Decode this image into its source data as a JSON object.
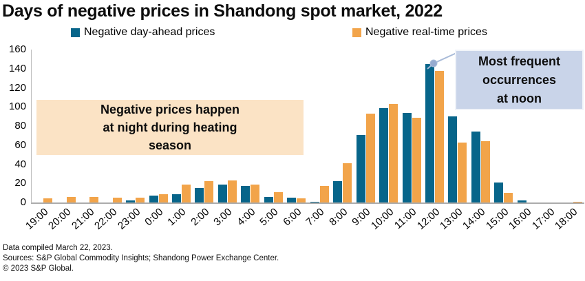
{
  "title": "Days of negative prices in Shandong spot market, 2022",
  "legend": {
    "items": [
      {
        "label": "Negative day-ahead prices",
        "color": "#07658a"
      },
      {
        "label": "Negative real-time prices",
        "color": "#f2a44a"
      }
    ]
  },
  "annotations": {
    "night": {
      "lines": [
        "Negative prices happen",
        "at night during heating",
        "season"
      ],
      "bg_color": "#fbe3c5"
    },
    "noon": {
      "lines": [
        "Most frequent",
        "occurrences",
        "at noon"
      ],
      "bg_color": "#c9d4e9",
      "leader_color": "#a9bbd8",
      "dot_color": "#96abd0"
    }
  },
  "footer": {
    "line1": "Data compiled March 22, 2023.",
    "line2": "Sources: S&P Global Commodity Insights; Shandong Power Exchange Center.",
    "line3": "© 2023 S&P Global."
  },
  "chart_data": {
    "type": "bar",
    "title": "Days of negative prices in Shandong spot market, 2022",
    "xlabel": "",
    "ylabel": "",
    "ylim": [
      0,
      160
    ],
    "yticks": [
      0,
      20,
      40,
      60,
      80,
      100,
      120,
      140,
      160
    ],
    "grid": false,
    "legend_position": "top",
    "categories": [
      "19:00",
      "20:00",
      "21:00",
      "22:00",
      "23:00",
      "0:00",
      "1:00",
      "2:00",
      "3:00",
      "4:00",
      "5:00",
      "6:00",
      "7:00",
      "8:00",
      "9:00",
      "10:00",
      "11:00",
      "12:00",
      "13:00",
      "14:00",
      "15:00",
      "16:00",
      "17:00",
      "18:00"
    ],
    "series": [
      {
        "name": "Negative day-ahead prices",
        "color": "#07658a",
        "values": [
          0,
          0,
          0,
          0,
          2,
          7,
          9,
          15,
          19,
          17,
          6,
          5,
          1,
          22,
          71,
          99,
          94,
          145,
          90,
          74,
          21,
          2,
          0,
          0
        ]
      },
      {
        "name": "Negative real-time prices",
        "color": "#f2a44a",
        "values": [
          4,
          6,
          6,
          5,
          5,
          9,
          19,
          22,
          23,
          19,
          11,
          4,
          17,
          41,
          93,
          103,
          89,
          138,
          63,
          64,
          10,
          0,
          0,
          1
        ]
      }
    ],
    "annotation_texts": [
      "Negative prices happen at night during heating season",
      "Most frequent occurrences at noon"
    ]
  }
}
